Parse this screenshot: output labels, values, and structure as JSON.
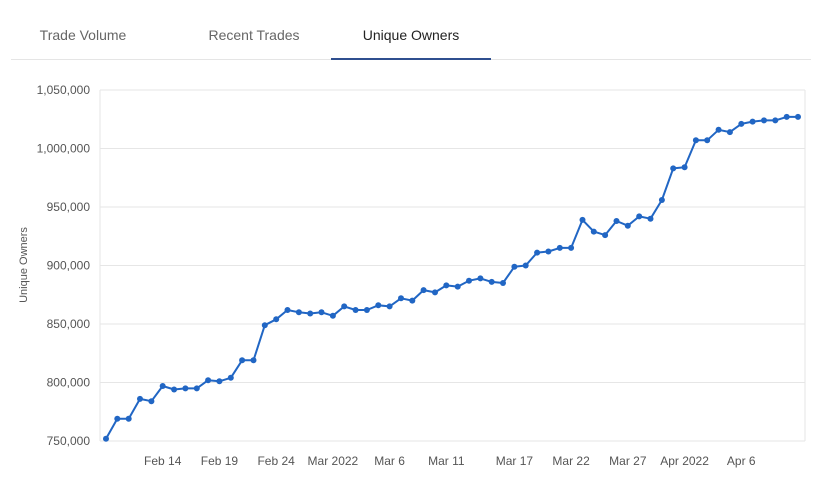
{
  "tabs": [
    {
      "label": "Trade Volume",
      "active": false
    },
    {
      "label": "Recent Trades",
      "active": false
    },
    {
      "label": "Unique Owners",
      "active": true
    }
  ],
  "colors": {
    "line": "#2166c4",
    "grid": "#e6e6e6",
    "tab_underline": "#2f4f8f"
  },
  "chart_data": {
    "type": "line",
    "title": "",
    "xlabel": "",
    "ylabel": "Unique Owners",
    "ylim": [
      750000,
      1050000
    ],
    "yticks": [
      750000,
      800000,
      850000,
      900000,
      950000,
      1000000,
      1050000
    ],
    "ytick_labels": [
      "750,000",
      "800,000",
      "850,000",
      "900,000",
      "950,000",
      "1,000,000",
      "1,050,000"
    ],
    "xlim": [
      "2022-02-09",
      "2022-04-11"
    ],
    "xticks": [
      {
        "date": "2022-02-14",
        "label": "Feb 14"
      },
      {
        "date": "2022-02-19",
        "label": "Feb 19"
      },
      {
        "date": "2022-02-24",
        "label": "Feb 24"
      },
      {
        "date": "2022-03-01",
        "label": "Mar 2022"
      },
      {
        "date": "2022-03-06",
        "label": "Mar 6"
      },
      {
        "date": "2022-03-11",
        "label": "Mar 11"
      },
      {
        "date": "2022-03-17",
        "label": "Mar 17"
      },
      {
        "date": "2022-03-22",
        "label": "Mar 22"
      },
      {
        "date": "2022-03-27",
        "label": "Mar 27"
      },
      {
        "date": "2022-04-01",
        "label": "Apr 2022"
      },
      {
        "date": "2022-04-06",
        "label": "Apr 6"
      }
    ],
    "grid": true,
    "legend": "none",
    "series": [
      {
        "x": [
          "2022-02-09",
          "2022-02-10",
          "2022-02-11",
          "2022-02-12",
          "2022-02-13",
          "2022-02-14",
          "2022-02-15",
          "2022-02-16",
          "2022-02-17",
          "2022-02-18",
          "2022-02-19",
          "2022-02-20",
          "2022-02-21",
          "2022-02-22",
          "2022-02-23",
          "2022-02-24",
          "2022-02-25",
          "2022-02-26",
          "2022-02-27",
          "2022-02-28",
          "2022-03-01",
          "2022-03-02",
          "2022-03-03",
          "2022-03-04",
          "2022-03-05",
          "2022-03-06",
          "2022-03-07",
          "2022-03-08",
          "2022-03-09",
          "2022-03-10",
          "2022-03-11",
          "2022-03-12",
          "2022-03-13",
          "2022-03-14",
          "2022-03-15",
          "2022-03-16",
          "2022-03-17",
          "2022-03-18",
          "2022-03-19",
          "2022-03-20",
          "2022-03-21",
          "2022-03-22",
          "2022-03-23",
          "2022-03-24",
          "2022-03-25",
          "2022-03-26",
          "2022-03-27",
          "2022-03-28",
          "2022-03-29",
          "2022-03-30",
          "2022-03-31",
          "2022-04-01",
          "2022-04-02",
          "2022-04-03",
          "2022-04-04",
          "2022-04-05",
          "2022-04-06",
          "2022-04-07",
          "2022-04-08",
          "2022-04-09",
          "2022-04-10",
          "2022-04-11"
        ],
        "y": [
          752000,
          769000,
          769000,
          786000,
          784000,
          797000,
          794000,
          795000,
          795000,
          802000,
          801000,
          804000,
          819000,
          819000,
          849000,
          854000,
          862000,
          860000,
          859000,
          860000,
          857000,
          865000,
          862000,
          862000,
          866000,
          865000,
          872000,
          870000,
          879000,
          877000,
          883000,
          882000,
          887000,
          889000,
          886000,
          885000,
          899000,
          900000,
          911000,
          912000,
          915000,
          915000,
          939000,
          929000,
          926000,
          938000,
          934000,
          942000,
          940000,
          956000,
          983000,
          984000,
          1007000,
          1007000,
          1016000,
          1014000,
          1021000,
          1023000,
          1024000,
          1024000,
          1027000,
          1027000
        ]
      }
    ]
  }
}
